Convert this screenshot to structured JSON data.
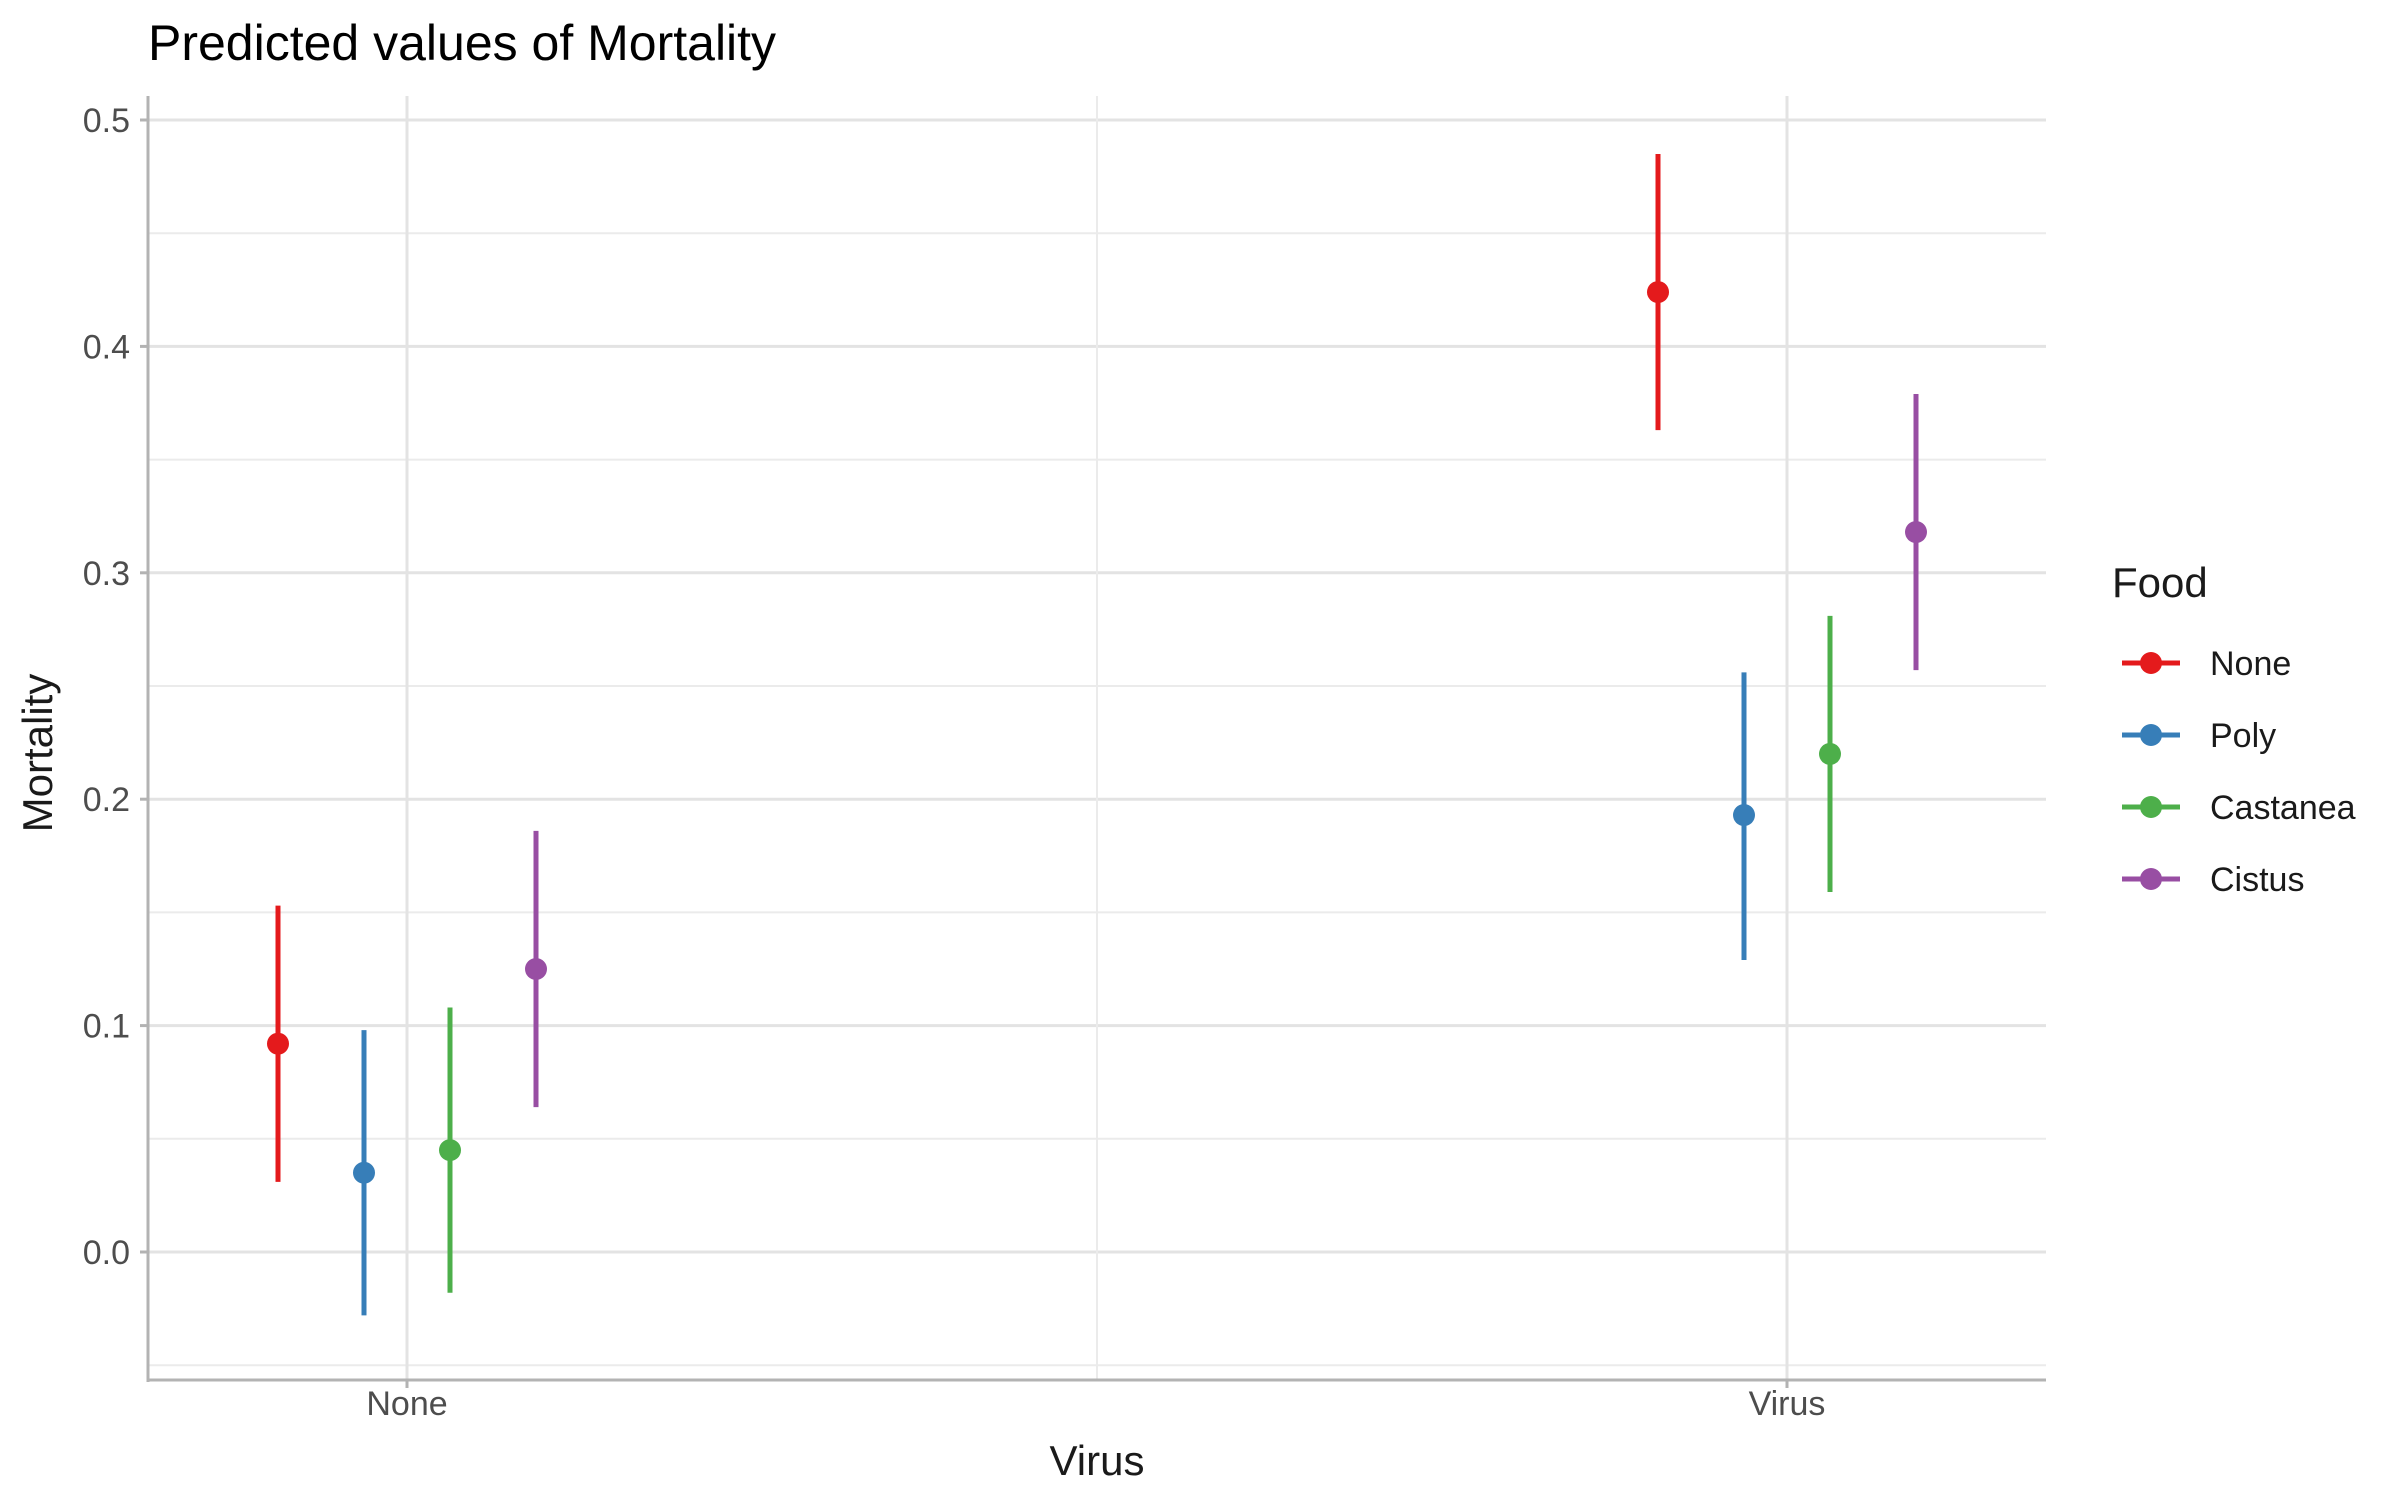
{
  "chart_data": {
    "type": "scatter",
    "title": "Predicted values of Mortality",
    "xlabel": "Virus",
    "ylabel": "Mortality",
    "categories": [
      "None",
      "Virus"
    ],
    "ylim": [
      -0.05,
      0.51
    ],
    "y_ticks": [
      "0.0",
      "0.1",
      "0.2",
      "0.3",
      "0.4",
      "0.5"
    ],
    "grid": true,
    "legend": {
      "title": "Food",
      "placement": "right"
    },
    "series": [
      {
        "name": "None",
        "color": "#e41a1c",
        "values": [
          0.092,
          0.424
        ],
        "lower": [
          0.031,
          0.363
        ],
        "upper": [
          0.153,
          0.485
        ]
      },
      {
        "name": "Poly",
        "color": "#377eb8",
        "values": [
          0.035,
          0.193
        ],
        "lower": [
          -0.028,
          0.129
        ],
        "upper": [
          0.098,
          0.256
        ]
      },
      {
        "name": "Castanea",
        "color": "#4daf4a",
        "values": [
          0.045,
          0.22
        ],
        "lower": [
          -0.018,
          0.159
        ],
        "upper": [
          0.108,
          0.281
        ]
      },
      {
        "name": "Cistus",
        "color": "#984ea3",
        "values": [
          0.125,
          0.318
        ],
        "lower": [
          0.064,
          0.257
        ],
        "upper": [
          0.186,
          0.379
        ]
      }
    ]
  }
}
